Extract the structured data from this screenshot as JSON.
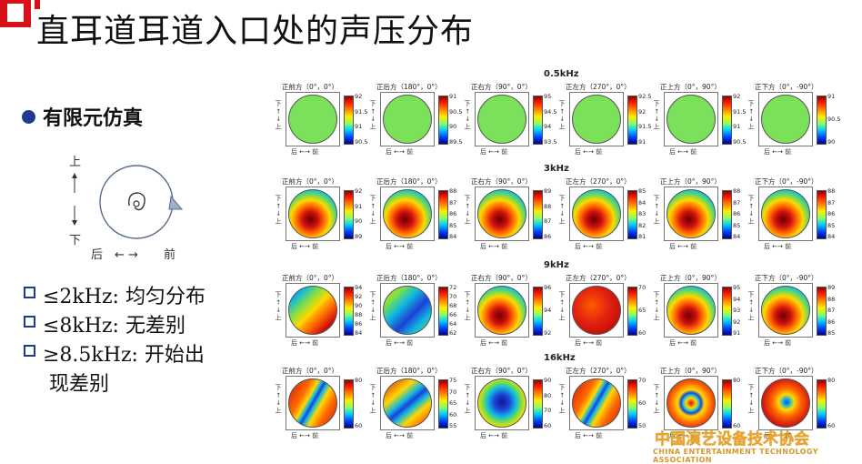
{
  "title": "直耳道耳道入口处的声压分布",
  "bullet": "有限元仿真",
  "ear_diagram": {
    "up": "上",
    "down": "下",
    "back": "后",
    "front": "前",
    "arrows_h": "←  →"
  },
  "findings": [
    {
      "text": "≤2kHz: 均匀分布"
    },
    {
      "text": "≤8kHz: 无差别"
    },
    {
      "text": "≥8.5kHz: 开始出"
    }
  ],
  "findings_cont": "现差别",
  "axis_side": "下 ← → 上",
  "axis_bottom": "后 ←→ 前",
  "colors": {
    "accent": "#1f3a93",
    "logo": "#e8a52a"
  },
  "rows": [
    {
      "freq": "0.5kHz",
      "panels": [
        {
          "label": "正前方（0°，0°）",
          "ticks": [
            "92",
            "91.5",
            "91",
            "90.5"
          ],
          "field": "uniform"
        },
        {
          "label": "正后方（180°，0°）",
          "ticks": [
            "91",
            "90.5",
            "90",
            "89.5"
          ],
          "field": "uniform"
        },
        {
          "label": "正右方（90°，0°）",
          "ticks": [
            "95",
            "94.5",
            "94",
            "93.5"
          ],
          "field": "uniform"
        },
        {
          "label": "正左方（270°，0°）",
          "ticks": [
            "92.5",
            "92",
            "91.5",
            "91"
          ],
          "field": "uniform"
        },
        {
          "label": "正上方（0°，90°）",
          "ticks": [
            "92",
            "91.5",
            "91",
            "90.5"
          ],
          "field": "uniform"
        },
        {
          "label": "正下方（0°，-90°）",
          "ticks": [
            "91",
            "90.5",
            "90"
          ],
          "field": "uniform"
        }
      ]
    },
    {
      "freq": "3kHz",
      "panels": [
        {
          "label": "正前方（0°，0°）",
          "ticks": [
            "92",
            "91",
            "90",
            "89"
          ],
          "field": "blob"
        },
        {
          "label": "正后方（180°，0°）",
          "ticks": [
            "88",
            "87",
            "86",
            "85",
            "84"
          ],
          "field": "blob"
        },
        {
          "label": "正右方（90°，0°）",
          "ticks": [
            "89",
            "88",
            "87",
            "86"
          ],
          "field": "blob"
        },
        {
          "label": "正左方（270°，0°）",
          "ticks": [
            "85",
            "84",
            "83",
            "82",
            "81"
          ],
          "field": "blob"
        },
        {
          "label": "正上方（0°，90°）",
          "ticks": [
            "88",
            "87",
            "86",
            "85",
            "84"
          ],
          "field": "blob"
        },
        {
          "label": "正下方（0°，-90°）",
          "ticks": [
            "88",
            "87",
            "86",
            "85",
            "84"
          ],
          "field": "blob"
        }
      ]
    },
    {
      "freq": "9kHz",
      "panels": [
        {
          "label": "正前方（0°，0°）",
          "ticks": [
            "94",
            "92",
            "90",
            "88",
            "86",
            "84"
          ],
          "field": "diag"
        },
        {
          "label": "正后方（180°，0°）",
          "ticks": [
            "72",
            "70",
            "68",
            "66",
            "64",
            "62"
          ],
          "field": "diagblue"
        },
        {
          "label": "正右方（90°，0°）",
          "ticks": [
            "96",
            "94",
            "92"
          ],
          "field": "blob"
        },
        {
          "label": "正左方（270°，0°）",
          "ticks": [
            "70",
            "65",
            "60"
          ],
          "field": "red"
        },
        {
          "label": "正上方（0°，90°）",
          "ticks": [
            "95",
            "94",
            "93",
            "92",
            "91"
          ],
          "field": "blob"
        },
        {
          "label": "正下方（0°，-90°）",
          "ticks": [
            "89",
            "88",
            "87",
            "86",
            "85"
          ],
          "field": "blob"
        }
      ]
    },
    {
      "freq": "16kHz",
      "panels": [
        {
          "label": "正前方（0°，0°）",
          "ticks": [
            "80",
            "60"
          ],
          "field": "stripe"
        },
        {
          "label": "正后方（180°，0°）",
          "ticks": [
            "75",
            "70",
            "65",
            "60",
            "55"
          ],
          "field": "stripe2"
        },
        {
          "label": "正右方（90°，0°）",
          "ticks": [
            "90",
            "80",
            "70",
            "60"
          ],
          "field": "bluecenter"
        },
        {
          "label": "正左方（270°，0°）",
          "ticks": [
            "70",
            "60",
            "50"
          ],
          "field": "stripe"
        },
        {
          "label": "正上方（0°，90°）",
          "ticks": [
            "80",
            "60"
          ],
          "field": "ring"
        },
        {
          "label": "正下方（0°，-90°）",
          "ticks": [
            "80",
            "60"
          ],
          "field": "ring2"
        }
      ]
    }
  ],
  "logo_cn": "中国演艺设备技术协会",
  "logo_en": "CHINA ENTERTAINMENT TECHNOLOGY ASSOCIATION"
}
